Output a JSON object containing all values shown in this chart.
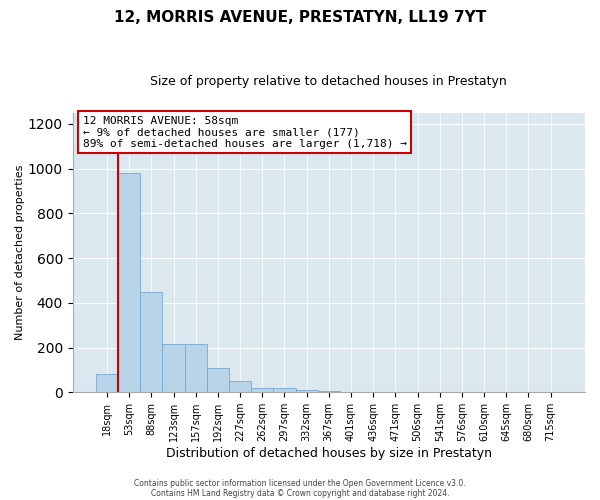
{
  "title": "12, MORRIS AVENUE, PRESTATYN, LL19 7YT",
  "subtitle": "Size of property relative to detached houses in Prestatyn",
  "xlabel": "Distribution of detached houses by size in Prestatyn",
  "ylabel": "Number of detached properties",
  "bar_labels": [
    "18sqm",
    "53sqm",
    "88sqm",
    "123sqm",
    "157sqm",
    "192sqm",
    "227sqm",
    "262sqm",
    "297sqm",
    "332sqm",
    "367sqm",
    "401sqm",
    "436sqm",
    "471sqm",
    "506sqm",
    "541sqm",
    "576sqm",
    "610sqm",
    "645sqm",
    "680sqm",
    "715sqm"
  ],
  "bar_heights": [
    80,
    980,
    450,
    215,
    215,
    110,
    50,
    18,
    18,
    10,
    5,
    0,
    0,
    0,
    0,
    0,
    0,
    0,
    0,
    0,
    0
  ],
  "bar_color": "#b8d4e8",
  "bar_edge_color": "#7aa8cc",
  "vline_color": "#cc0000",
  "annotation_text": "12 MORRIS AVENUE: 58sqm\n← 9% of detached houses are smaller (177)\n89% of semi-detached houses are larger (1,718) →",
  "annotation_box_color": "#ffffff",
  "annotation_box_edge": "#cc0000",
  "ylim": [
    0,
    1250
  ],
  "yticks": [
    0,
    200,
    400,
    600,
    800,
    1000,
    1200
  ],
  "footer1": "Contains HM Land Registry data © Crown copyright and database right 2024.",
  "footer2": "Contains public sector information licensed under the Open Government Licence v3.0.",
  "fig_background": "#ffffff",
  "plot_background": "#dce8f0",
  "grid_color": "#ffffff",
  "title_fontsize": 11,
  "subtitle_fontsize": 9
}
